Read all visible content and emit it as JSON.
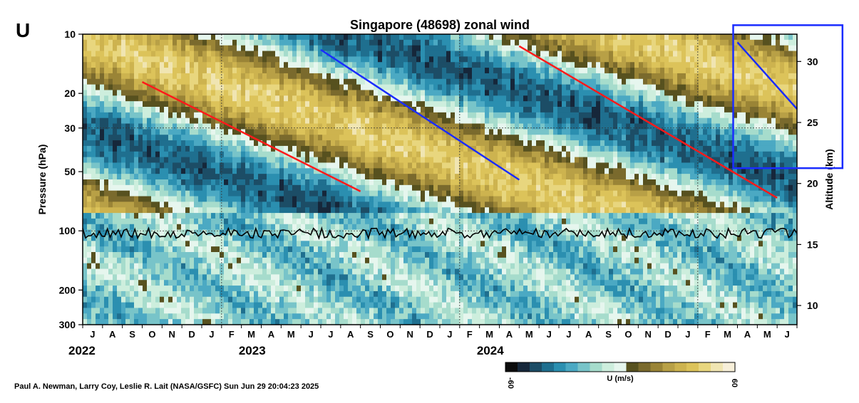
{
  "panel_letter": "U",
  "credit": "Paul A. Newman, Larry Coy, Leslie R. Lait (NASA/GSFC) Sun Jun 29 20:04:23 2025",
  "chart_data": {
    "type": "heatmap",
    "title": "Singapore (48698) zonal wind",
    "ylabel": "Pressure (hPa)",
    "y2label": "Altitude (km)",
    "xlabel": "",
    "y_scale": "log",
    "ylim": [
      300,
      10
    ],
    "y_ticks": [
      10,
      20,
      30,
      50,
      100,
      200,
      300
    ],
    "y2_ticks": [
      30,
      25,
      20,
      15,
      10
    ],
    "x_months": [
      "J",
      "A",
      "S",
      "O",
      "N",
      "D",
      "J",
      "F",
      "M",
      "A",
      "M",
      "J",
      "J",
      "A",
      "S",
      "O",
      "N",
      "D",
      "J",
      "F",
      "M",
      "A",
      "M",
      "J",
      "J",
      "A",
      "S",
      "O",
      "N",
      "D",
      "J",
      "F",
      "M",
      "A",
      "M",
      "J"
    ],
    "x_years": [
      "2022",
      "2023",
      "2024"
    ],
    "grid": "dotted at 30 hPa, 100 hPa and each January",
    "colorbar": {
      "label": "U (m/s)",
      "min": "-60",
      "max": "60",
      "colors": [
        "#0b0b0b",
        "#16273a",
        "#1c4d66",
        "#1f6f8f",
        "#2b8fb0",
        "#4ba9c3",
        "#78c4c9",
        "#a6dccc",
        "#cdeedd",
        "#e6f6ee",
        "#57511f",
        "#7a6a2d",
        "#9a8436",
        "#b8a046",
        "#cdb34f",
        "#dcc35a",
        "#e8d67e",
        "#f0e5b2",
        "#f7efd9"
      ]
    },
    "annotation_lines": [
      {
        "color": "#ff1a1a",
        "start": [
          "2022-09",
          17.5
        ],
        "end": [
          "2023-08",
          63
        ]
      },
      {
        "color": "#1a2cff",
        "start": [
          "2023-06",
          12
        ],
        "end": [
          "2024-04",
          55
        ]
      },
      {
        "color": "#ff1a1a",
        "start": [
          "2024-04",
          11.5
        ],
        "end": [
          "2025-05",
          68
        ]
      },
      {
        "color": "#1a2cff",
        "start": [
          "2025-03",
          11
        ],
        "end": [
          "2025-06",
          24
        ]
      }
    ],
    "highlight_box": {
      "color": "#1a2cff",
      "x_range": [
        "2025-03",
        "2025-07"
      ],
      "y_range": [
        9,
        48
      ]
    },
    "tropopause_line": {
      "color": "#000000",
      "pressure_hPa": 100
    }
  }
}
